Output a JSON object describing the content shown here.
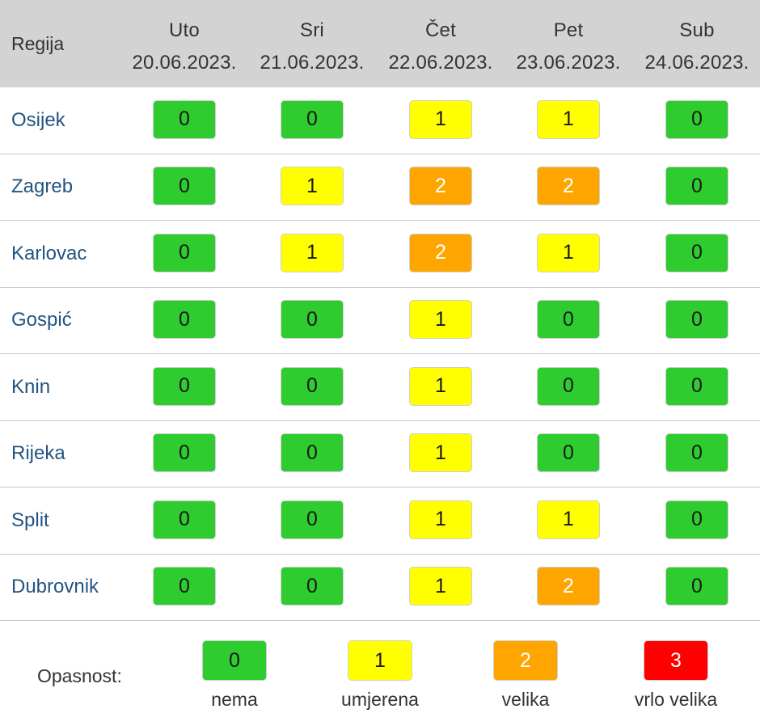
{
  "header": {
    "region_label": "Regija",
    "days": [
      {
        "name": "Uto",
        "date": "20.06.2023."
      },
      {
        "name": "Sri",
        "date": "21.06.2023."
      },
      {
        "name": "Čet",
        "date": "22.06.2023."
      },
      {
        "name": "Pet",
        "date": "23.06.2023."
      },
      {
        "name": "Sub",
        "date": "24.06.2023."
      }
    ]
  },
  "rows": [
    {
      "region": "Osijek",
      "values": [
        0,
        0,
        1,
        1,
        0
      ]
    },
    {
      "region": "Zagreb",
      "values": [
        0,
        1,
        2,
        2,
        0
      ]
    },
    {
      "region": "Karlovac",
      "values": [
        0,
        1,
        2,
        1,
        0
      ]
    },
    {
      "region": "Gospić",
      "values": [
        0,
        0,
        1,
        0,
        0
      ]
    },
    {
      "region": "Knin",
      "values": [
        0,
        0,
        1,
        0,
        0
      ]
    },
    {
      "region": "Rijeka",
      "values": [
        0,
        0,
        1,
        0,
        0
      ]
    },
    {
      "region": "Split",
      "values": [
        0,
        0,
        1,
        1,
        0
      ]
    },
    {
      "region": "Dubrovnik",
      "values": [
        0,
        0,
        1,
        2,
        0
      ]
    }
  ],
  "legend": {
    "label": "Opasnost:",
    "levels": [
      {
        "value": "0",
        "caption": "nema"
      },
      {
        "value": "1",
        "caption": "umjerena"
      },
      {
        "value": "2",
        "caption": "velika"
      },
      {
        "value": "3",
        "caption": "vrlo velika"
      }
    ]
  },
  "level_colors": {
    "0": {
      "bg": "#2ecc2e",
      "fg": "#1a1a1a"
    },
    "1": {
      "bg": "#ffff00",
      "fg": "#1a1a1a"
    },
    "2": {
      "bg": "#ffa500",
      "fg": "#ffffff"
    },
    "3": {
      "bg": "#ff0000",
      "fg": "#ffffff"
    }
  },
  "colors": {
    "header_bg": "#d3d3d3",
    "region_link": "#215481",
    "row_divider": "#c8c8d0"
  }
}
